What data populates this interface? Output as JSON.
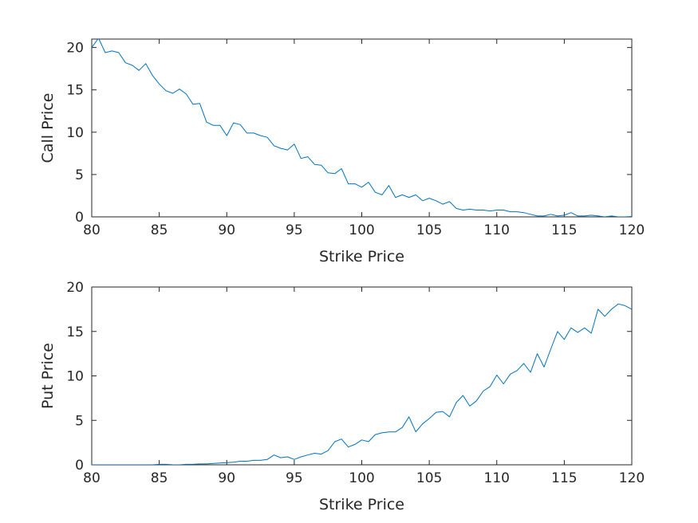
{
  "chart_data": [
    {
      "type": "line",
      "xlabel": "Strike Price",
      "ylabel": "Call Price",
      "xlim": [
        80,
        120
      ],
      "ylim": [
        0,
        21
      ],
      "xticks": [
        80,
        85,
        90,
        95,
        100,
        105,
        110,
        115,
        120
      ],
      "yticks": [
        0,
        5,
        10,
        15,
        20
      ],
      "grid": false,
      "line_color": "#0072BD",
      "series": [
        {
          "x": [
            80,
            80.5,
            81,
            81.5,
            82,
            82.5,
            83,
            83.5,
            84,
            84.5,
            85,
            85.5,
            86,
            86.5,
            87,
            87.5,
            88,
            88.5,
            89,
            89.5,
            90,
            90.5,
            91,
            91.5,
            92,
            92.5,
            93,
            93.5,
            94,
            94.5,
            95,
            95.5,
            96,
            96.5,
            97,
            97.5,
            98,
            98.5,
            99,
            99.5,
            100,
            100.5,
            101,
            101.5,
            102,
            102.5,
            103,
            103.5,
            104,
            104.5,
            105,
            105.5,
            106,
            106.5,
            107,
            107.5,
            108,
            108.5,
            109,
            109.5,
            110,
            110.5,
            111,
            111.5,
            112,
            112.5,
            113,
            113.5,
            114,
            114.5,
            115,
            115.5,
            116,
            116.5,
            117,
            117.5,
            118,
            118.5,
            119,
            119.5,
            120
          ],
          "y": [
            20,
            21.1,
            19.4,
            19.6,
            19.4,
            18.2,
            17.9,
            17.3,
            18.1,
            16.7,
            15.7,
            14.9,
            14.6,
            15.1,
            14.5,
            13.3,
            13.4,
            11.2,
            10.8,
            10.8,
            9.6,
            11.1,
            10.9,
            9.9,
            9.9,
            9.6,
            9.4,
            8.4,
            8.1,
            7.9,
            8.6,
            6.9,
            7.1,
            6.2,
            6.1,
            5.2,
            5.1,
            5.7,
            3.9,
            3.9,
            3.5,
            4.1,
            2.9,
            2.6,
            3.7,
            2.3,
            2.6,
            2.3,
            2.6,
            1.9,
            2.2,
            1.9,
            1.5,
            1.8,
            1.0,
            0.8,
            0.9,
            0.8,
            0.8,
            0.7,
            0.8,
            0.8,
            0.6,
            0.6,
            0.5,
            0.3,
            0.1,
            0.1,
            0.3,
            0.1,
            0.2,
            0.5,
            0.1,
            0.1,
            0.2,
            0.1,
            0.0,
            0.1,
            0.0,
            0.0,
            0.05
          ]
        }
      ]
    },
    {
      "type": "line",
      "xlabel": "Strike Price",
      "ylabel": "Put Price",
      "xlim": [
        80,
        120
      ],
      "ylim": [
        0,
        20
      ],
      "xticks": [
        80,
        85,
        90,
        95,
        100,
        105,
        110,
        115,
        120
      ],
      "yticks": [
        0,
        5,
        10,
        15,
        20
      ],
      "grid": false,
      "line_color": "#0072BD",
      "series": [
        {
          "x": [
            80,
            80.5,
            81,
            81.5,
            82,
            82.5,
            83,
            83.5,
            84,
            84.5,
            85,
            85.5,
            86,
            86.5,
            87,
            87.5,
            88,
            88.5,
            89,
            89.5,
            90,
            90.5,
            91,
            91.5,
            92,
            92.5,
            93,
            93.5,
            94,
            94.5,
            95,
            95.5,
            96,
            96.5,
            97,
            97.5,
            98,
            98.5,
            99,
            99.5,
            100,
            100.5,
            101,
            101.5,
            102,
            102.5,
            103,
            103.5,
            104,
            104.5,
            105,
            105.5,
            106,
            106.5,
            107,
            107.5,
            108,
            108.5,
            109,
            109.5,
            110,
            110.5,
            111,
            111.5,
            112,
            112.5,
            113,
            113.5,
            114,
            114.5,
            115,
            115.5,
            116,
            116.5,
            117,
            117.5,
            118,
            118.5,
            119,
            119.5,
            120
          ],
          "y": [
            0,
            0,
            0,
            0,
            0,
            0,
            0,
            0,
            0,
            0,
            0.05,
            0.05,
            0,
            0,
            0.05,
            0.05,
            0.1,
            0.1,
            0.15,
            0.2,
            0.25,
            0.3,
            0.4,
            0.4,
            0.5,
            0.5,
            0.6,
            1.1,
            0.8,
            0.9,
            0.6,
            0.9,
            1.1,
            1.3,
            1.2,
            1.6,
            2.6,
            2.9,
            2.0,
            2.3,
            2.8,
            2.6,
            3.4,
            3.6,
            3.7,
            3.7,
            4.2,
            5.4,
            3.7,
            4.6,
            5.2,
            5.9,
            6.0,
            5.4,
            7.0,
            7.8,
            6.6,
            7.2,
            8.3,
            8.8,
            10.1,
            9.1,
            10.2,
            10.6,
            11.4,
            10.4,
            12.5,
            11.0,
            13.0,
            15.0,
            14.1,
            15.4,
            14.9,
            15.4,
            14.8,
            17.5,
            16.7,
            17.5,
            18.1,
            17.9,
            17.5
          ]
        }
      ]
    }
  ]
}
